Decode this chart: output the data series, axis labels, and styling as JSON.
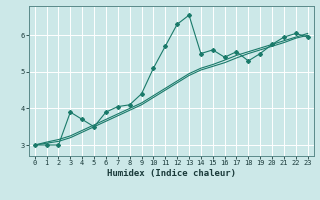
{
  "xlabel": "Humidex (Indice chaleur)",
  "ylabel": "",
  "bg_color": "#cce8e8",
  "line_color": "#1a7a6a",
  "grid_color": "#ffffff",
  "x_data": [
    0,
    1,
    2,
    3,
    4,
    5,
    6,
    7,
    8,
    9,
    10,
    11,
    12,
    13,
    14,
    15,
    16,
    17,
    18,
    19,
    20,
    21,
    22,
    23
  ],
  "y_main": [
    3.0,
    3.0,
    3.0,
    3.9,
    3.7,
    3.5,
    3.9,
    4.05,
    4.1,
    4.4,
    5.1,
    5.7,
    6.3,
    6.55,
    5.5,
    5.6,
    5.4,
    5.55,
    5.3,
    5.5,
    5.75,
    5.95,
    6.05,
    5.95
  ],
  "y_line2": [
    3.0,
    3.05,
    3.1,
    3.2,
    3.35,
    3.5,
    3.65,
    3.8,
    3.95,
    4.1,
    4.3,
    4.5,
    4.7,
    4.9,
    5.05,
    5.15,
    5.25,
    5.38,
    5.5,
    5.6,
    5.7,
    5.8,
    5.92,
    6.0
  ],
  "y_line3": [
    3.0,
    3.08,
    3.15,
    3.25,
    3.4,
    3.55,
    3.7,
    3.85,
    4.0,
    4.15,
    4.35,
    4.55,
    4.75,
    4.95,
    5.1,
    5.2,
    5.32,
    5.45,
    5.55,
    5.65,
    5.75,
    5.85,
    5.95,
    6.05
  ],
  "xlim": [
    -0.5,
    23.5
  ],
  "ylim": [
    2.7,
    6.8
  ],
  "yticks": [
    3,
    4,
    5,
    6
  ],
  "xticks": [
    0,
    1,
    2,
    3,
    4,
    5,
    6,
    7,
    8,
    9,
    10,
    11,
    12,
    13,
    14,
    15,
    16,
    17,
    18,
    19,
    20,
    21,
    22,
    23
  ],
  "xlabel_fontsize": 6.5,
  "tick_fontsize": 5.0
}
